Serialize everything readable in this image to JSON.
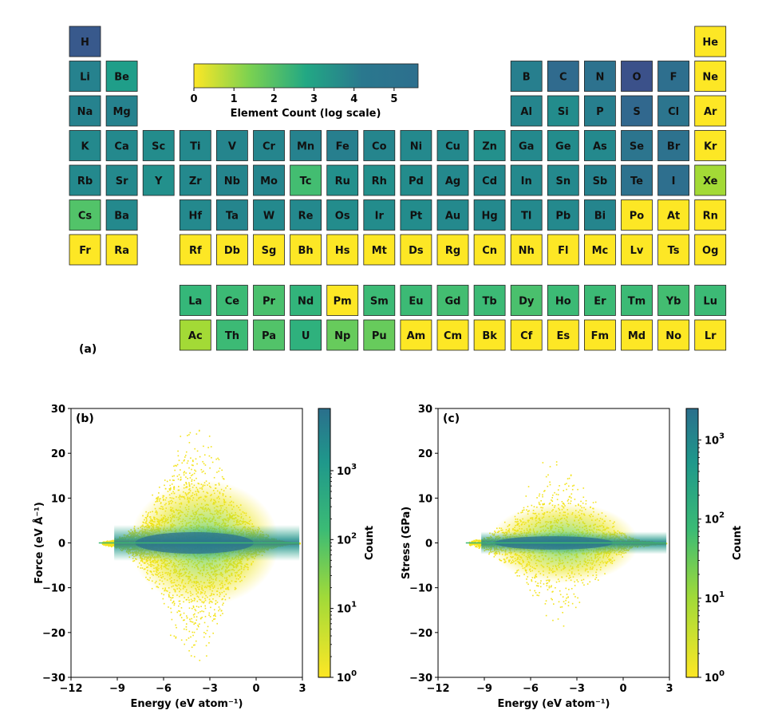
{
  "chart_data": [
    {
      "panel": "(a)",
      "type": "heatmap",
      "colorbar": {
        "label": "Element Count (log scale)",
        "ticks": [
          "0",
          "1",
          "2",
          "3",
          "4",
          "5"
        ],
        "range": [
          0,
          5.6
        ]
      },
      "elements": [
        {
          "symbol": "H",
          "row": 1,
          "col": 1,
          "value": 5.2
        },
        {
          "symbol": "He",
          "row": 1,
          "col": 18,
          "value": 0
        },
        {
          "symbol": "Li",
          "row": 2,
          "col": 1,
          "value": 4.0
        },
        {
          "symbol": "Be",
          "row": 2,
          "col": 2,
          "value": 3.2
        },
        {
          "symbol": "B",
          "row": 2,
          "col": 13,
          "value": 4.1
        },
        {
          "symbol": "C",
          "row": 2,
          "col": 14,
          "value": 4.7
        },
        {
          "symbol": "N",
          "row": 2,
          "col": 15,
          "value": 4.5
        },
        {
          "symbol": "O",
          "row": 2,
          "col": 16,
          "value": 5.4
        },
        {
          "symbol": "F",
          "row": 2,
          "col": 17,
          "value": 4.6
        },
        {
          "symbol": "Ne",
          "row": 2,
          "col": 18,
          "value": 0
        },
        {
          "symbol": "Na",
          "row": 3,
          "col": 1,
          "value": 4.0
        },
        {
          "symbol": "Mg",
          "row": 3,
          "col": 2,
          "value": 4.0
        },
        {
          "symbol": "Al",
          "row": 3,
          "col": 13,
          "value": 3.9
        },
        {
          "symbol": "Si",
          "row": 3,
          "col": 14,
          "value": 3.7
        },
        {
          "symbol": "P",
          "row": 3,
          "col": 15,
          "value": 4.1
        },
        {
          "symbol": "S",
          "row": 3,
          "col": 16,
          "value": 4.8
        },
        {
          "symbol": "Cl",
          "row": 3,
          "col": 17,
          "value": 4.4
        },
        {
          "symbol": "Ar",
          "row": 3,
          "col": 18,
          "value": 0
        },
        {
          "symbol": "K",
          "row": 4,
          "col": 1,
          "value": 3.8
        },
        {
          "symbol": "Ca",
          "row": 4,
          "col": 2,
          "value": 3.8
        },
        {
          "symbol": "Sc",
          "row": 4,
          "col": 3,
          "value": 3.7
        },
        {
          "symbol": "Ti",
          "row": 4,
          "col": 4,
          "value": 3.8
        },
        {
          "symbol": "V",
          "row": 4,
          "col": 5,
          "value": 3.9
        },
        {
          "symbol": "Cr",
          "row": 4,
          "col": 6,
          "value": 3.9
        },
        {
          "symbol": "Mn",
          "row": 4,
          "col": 7,
          "value": 4.0
        },
        {
          "symbol": "Fe",
          "row": 4,
          "col": 8,
          "value": 4.1
        },
        {
          "symbol": "Co",
          "row": 4,
          "col": 9,
          "value": 3.9
        },
        {
          "symbol": "Ni",
          "row": 4,
          "col": 10,
          "value": 3.8
        },
        {
          "symbol": "Cu",
          "row": 4,
          "col": 11,
          "value": 3.8
        },
        {
          "symbol": "Zn",
          "row": 4,
          "col": 12,
          "value": 3.6
        },
        {
          "symbol": "Ga",
          "row": 4,
          "col": 13,
          "value": 3.8
        },
        {
          "symbol": "Ge",
          "row": 4,
          "col": 14,
          "value": 3.7
        },
        {
          "symbol": "As",
          "row": 4,
          "col": 15,
          "value": 3.8
        },
        {
          "symbol": "Se",
          "row": 4,
          "col": 16,
          "value": 4.4
        },
        {
          "symbol": "Br",
          "row": 4,
          "col": 17,
          "value": 4.5
        },
        {
          "symbol": "Kr",
          "row": 4,
          "col": 18,
          "value": 0
        },
        {
          "symbol": "Rb",
          "row": 5,
          "col": 1,
          "value": 3.8
        },
        {
          "symbol": "Sr",
          "row": 5,
          "col": 2,
          "value": 3.8
        },
        {
          "symbol": "Y",
          "row": 5,
          "col": 3,
          "value": 3.6
        },
        {
          "symbol": "Zr",
          "row": 5,
          "col": 4,
          "value": 3.8
        },
        {
          "symbol": "Nb",
          "row": 5,
          "col": 5,
          "value": 3.9
        },
        {
          "symbol": "Mo",
          "row": 5,
          "col": 6,
          "value": 3.9
        },
        {
          "symbol": "Tc",
          "row": 5,
          "col": 7,
          "value": 2.2
        },
        {
          "symbol": "Ru",
          "row": 5,
          "col": 8,
          "value": 3.6
        },
        {
          "symbol": "Rh",
          "row": 5,
          "col": 9,
          "value": 3.6
        },
        {
          "symbol": "Pd",
          "row": 5,
          "col": 10,
          "value": 3.7
        },
        {
          "symbol": "Ag",
          "row": 5,
          "col": 11,
          "value": 3.8
        },
        {
          "symbol": "Cd",
          "row": 5,
          "col": 12,
          "value": 3.8
        },
        {
          "symbol": "In",
          "row": 5,
          "col": 13,
          "value": 3.8
        },
        {
          "symbol": "Sn",
          "row": 5,
          "col": 14,
          "value": 3.8
        },
        {
          "symbol": "Sb",
          "row": 5,
          "col": 15,
          "value": 4.0
        },
        {
          "symbol": "Te",
          "row": 5,
          "col": 16,
          "value": 4.5
        },
        {
          "symbol": "I",
          "row": 5,
          "col": 17,
          "value": 4.6
        },
        {
          "symbol": "Xe",
          "row": 5,
          "col": 18,
          "value": 1.0
        },
        {
          "symbol": "Cs",
          "row": 6,
          "col": 1,
          "value": 2.0
        },
        {
          "symbol": "Ba",
          "row": 6,
          "col": 2,
          "value": 3.8
        },
        {
          "symbol": "Hf",
          "row": 6,
          "col": 4,
          "value": 3.8
        },
        {
          "symbol": "Ta",
          "row": 6,
          "col": 5,
          "value": 3.9
        },
        {
          "symbol": "W",
          "row": 6,
          "col": 6,
          "value": 3.8
        },
        {
          "symbol": "Re",
          "row": 6,
          "col": 7,
          "value": 3.8
        },
        {
          "symbol": "Os",
          "row": 6,
          "col": 8,
          "value": 3.7
        },
        {
          "symbol": "Ir",
          "row": 6,
          "col": 9,
          "value": 3.7
        },
        {
          "symbol": "Pt",
          "row": 6,
          "col": 10,
          "value": 3.7
        },
        {
          "symbol": "Au",
          "row": 6,
          "col": 11,
          "value": 3.8
        },
        {
          "symbol": "Hg",
          "row": 6,
          "col": 12,
          "value": 3.8
        },
        {
          "symbol": "Tl",
          "row": 6,
          "col": 13,
          "value": 3.8
        },
        {
          "symbol": "Pb",
          "row": 6,
          "col": 14,
          "value": 3.8
        },
        {
          "symbol": "Bi",
          "row": 6,
          "col": 15,
          "value": 3.9
        },
        {
          "symbol": "Po",
          "row": 6,
          "col": 16,
          "value": 0
        },
        {
          "symbol": "At",
          "row": 6,
          "col": 17,
          "value": 0
        },
        {
          "symbol": "Rn",
          "row": 6,
          "col": 18,
          "value": 0
        },
        {
          "symbol": "Fr",
          "row": 7,
          "col": 1,
          "value": 0
        },
        {
          "symbol": "Ra",
          "row": 7,
          "col": 2,
          "value": 0
        },
        {
          "symbol": "Rf",
          "row": 7,
          "col": 4,
          "value": 0
        },
        {
          "symbol": "Db",
          "row": 7,
          "col": 5,
          "value": 0
        },
        {
          "symbol": "Sg",
          "row": 7,
          "col": 6,
          "value": 0
        },
        {
          "symbol": "Bh",
          "row": 7,
          "col": 7,
          "value": 0
        },
        {
          "symbol": "Hs",
          "row": 7,
          "col": 8,
          "value": 0
        },
        {
          "symbol": "Mt",
          "row": 7,
          "col": 9,
          "value": 0
        },
        {
          "symbol": "Ds",
          "row": 7,
          "col": 10,
          "value": 0
        },
        {
          "symbol": "Rg",
          "row": 7,
          "col": 11,
          "value": 0
        },
        {
          "symbol": "Cn",
          "row": 7,
          "col": 12,
          "value": 0
        },
        {
          "symbol": "Nh",
          "row": 7,
          "col": 13,
          "value": 0
        },
        {
          "symbol": "Fl",
          "row": 7,
          "col": 14,
          "value": 0
        },
        {
          "symbol": "Mc",
          "row": 7,
          "col": 15,
          "value": 0
        },
        {
          "symbol": "Lv",
          "row": 7,
          "col": 16,
          "value": 0
        },
        {
          "symbol": "Ts",
          "row": 7,
          "col": 17,
          "value": 0
        },
        {
          "symbol": "Og",
          "row": 7,
          "col": 18,
          "value": 0
        },
        {
          "symbol": "La",
          "row": 9,
          "col": 4,
          "value": 2.4
        },
        {
          "symbol": "Ce",
          "row": 9,
          "col": 5,
          "value": 2.3
        },
        {
          "symbol": "Pr",
          "row": 9,
          "col": 6,
          "value": 2.1
        },
        {
          "symbol": "Nd",
          "row": 9,
          "col": 7,
          "value": 2.5
        },
        {
          "symbol": "Pm",
          "row": 9,
          "col": 8,
          "value": 0
        },
        {
          "symbol": "Sm",
          "row": 9,
          "col": 9,
          "value": 2.3
        },
        {
          "symbol": "Eu",
          "row": 9,
          "col": 10,
          "value": 2.3
        },
        {
          "symbol": "Gd",
          "row": 9,
          "col": 11,
          "value": 2.2
        },
        {
          "symbol": "Tb",
          "row": 9,
          "col": 12,
          "value": 2.3
        },
        {
          "symbol": "Dy",
          "row": 9,
          "col": 13,
          "value": 2.1
        },
        {
          "symbol": "Ho",
          "row": 9,
          "col": 14,
          "value": 2.3
        },
        {
          "symbol": "Er",
          "row": 9,
          "col": 15,
          "value": 2.3
        },
        {
          "symbol": "Tm",
          "row": 9,
          "col": 16,
          "value": 2.3
        },
        {
          "symbol": "Yb",
          "row": 9,
          "col": 17,
          "value": 2.2
        },
        {
          "symbol": "Lu",
          "row": 9,
          "col": 18,
          "value": 2.3
        },
        {
          "symbol": "Ac",
          "row": 10,
          "col": 4,
          "value": 1.0
        },
        {
          "symbol": "Th",
          "row": 10,
          "col": 5,
          "value": 2.3
        },
        {
          "symbol": "Pa",
          "row": 10,
          "col": 6,
          "value": 2.0
        },
        {
          "symbol": "U",
          "row": 10,
          "col": 7,
          "value": 2.6
        },
        {
          "symbol": "Np",
          "row": 10,
          "col": 8,
          "value": 1.7
        },
        {
          "symbol": "Pu",
          "row": 10,
          "col": 9,
          "value": 1.7
        },
        {
          "symbol": "Am",
          "row": 10,
          "col": 10,
          "value": 0
        },
        {
          "symbol": "Cm",
          "row": 10,
          "col": 11,
          "value": 0
        },
        {
          "symbol": "Bk",
          "row": 10,
          "col": 12,
          "value": 0
        },
        {
          "symbol": "Cf",
          "row": 10,
          "col": 13,
          "value": 0
        },
        {
          "symbol": "Es",
          "row": 10,
          "col": 14,
          "value": 0
        },
        {
          "symbol": "Fm",
          "row": 10,
          "col": 15,
          "value": 0
        },
        {
          "symbol": "Md",
          "row": 10,
          "col": 16,
          "value": 0
        },
        {
          "symbol": "No",
          "row": 10,
          "col": 17,
          "value": 0
        },
        {
          "symbol": "Lr",
          "row": 10,
          "col": 18,
          "value": 0
        }
      ]
    },
    {
      "panel": "(b)",
      "type": "heatmap",
      "xlabel": "Energy (eV atom⁻¹)",
      "ylabel": "Force (eV Å⁻¹)",
      "xlim": [
        -12,
        3
      ],
      "ylim": [
        -30,
        30
      ],
      "xticks": [
        -12,
        -9,
        -6,
        -3,
        0,
        3
      ],
      "xtick_labels": [
        "−12",
        "−9",
        "−6",
        "−3",
        "0",
        "3"
      ],
      "yticks": [
        30,
        20,
        10,
        0,
        -10,
        -20,
        -30
      ],
      "ytick_labels": [
        "30",
        "20",
        "10",
        "0",
        "−10",
        "−20",
        "−30"
      ],
      "colorbar": {
        "label": "Count",
        "scale": "log",
        "range": [
          1,
          8000
        ],
        "tick_labels": [
          {
            "base": "10",
            "exp": "3",
            "value": 1000
          },
          {
            "base": "10",
            "exp": "2",
            "value": 100
          },
          {
            "base": "10",
            "exp": "1",
            "value": 10
          },
          {
            "base": "10",
            "exp": "0",
            "value": 1
          }
        ]
      },
      "distribution": {
        "center_energy": -4.0,
        "energy_span": [
          -10.0,
          2.8
        ],
        "force_spread_max": 30,
        "core_spread": 3
      }
    },
    {
      "panel": "(c)",
      "type": "heatmap",
      "xlabel": "Energy (eV atom⁻¹)",
      "ylabel": "Stress (GPa)",
      "xlim": [
        -12,
        3
      ],
      "ylim": [
        -30,
        30
      ],
      "xticks": [
        -12,
        -9,
        -6,
        -3,
        0,
        3
      ],
      "xtick_labels": [
        "−12",
        "−9",
        "−6",
        "−3",
        "0",
        "3"
      ],
      "yticks": [
        30,
        20,
        10,
        0,
        -10,
        -20,
        -30
      ],
      "ytick_labels": [
        "30",
        "20",
        "10",
        "0",
        "−10",
        "−20",
        "−30"
      ],
      "colorbar": {
        "label": "Count",
        "scale": "log",
        "range": [
          1,
          2500
        ],
        "tick_labels": [
          {
            "base": "10",
            "exp": "3",
            "value": 1000
          },
          {
            "base": "10",
            "exp": "2",
            "value": 100
          },
          {
            "base": "10",
            "exp": "1",
            "value": 10
          },
          {
            "base": "10",
            "exp": "0",
            "value": 1
          }
        ]
      },
      "distribution": {
        "center_energy": -4.5,
        "energy_span": [
          -10.0,
          2.8
        ],
        "stress_spread_max": 22,
        "core_spread": 1.5
      }
    }
  ]
}
